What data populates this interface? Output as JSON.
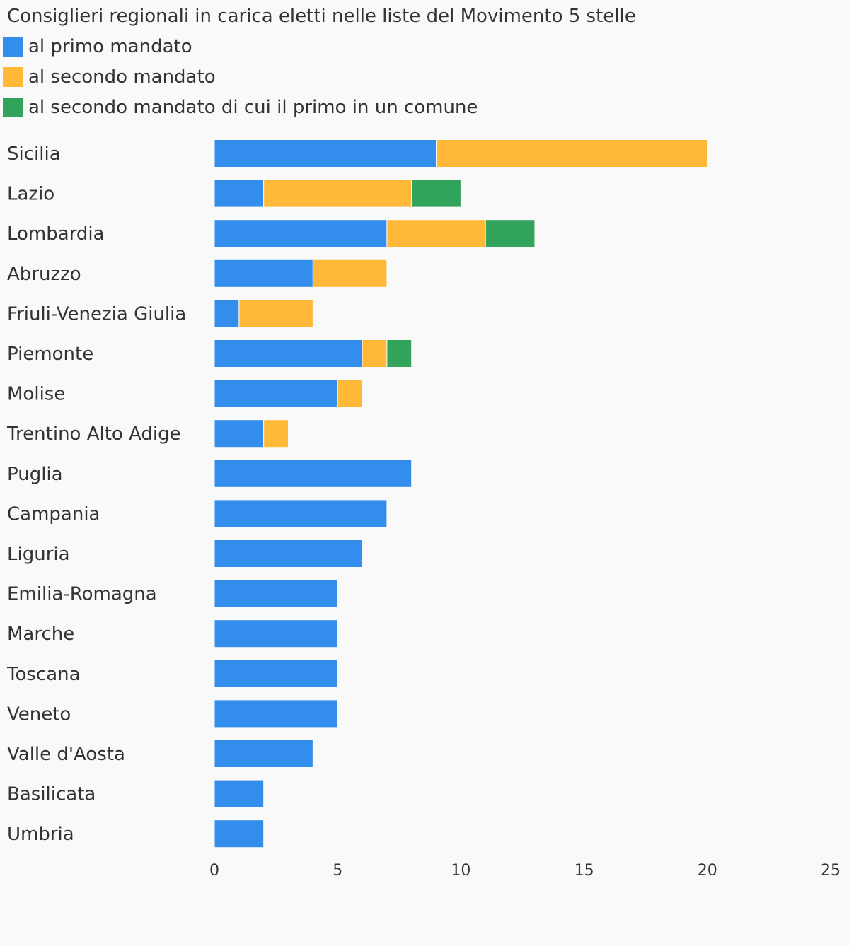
{
  "chart_data": {
    "type": "bar",
    "orientation": "horizontal",
    "stacked": true,
    "title": "Consiglieri regionali in carica eletti nelle liste del Movimento 5 stelle",
    "xlabel": "",
    "ylabel": "",
    "xlim": [
      0,
      25
    ],
    "xticks": [
      "0",
      "5",
      "10",
      "15",
      "20",
      "25"
    ],
    "grid": false,
    "legend_position": "top-left",
    "categories": [
      "Sicilia",
      "Lazio",
      "Lombardia",
      "Abruzzo",
      "Friuli-Venezia Giulia",
      "Piemonte",
      "Molise",
      "Trentino Alto Adige",
      "Puglia",
      "Campania",
      "Liguria",
      "Emilia-Romagna",
      "Marche",
      "Toscana",
      "Veneto",
      "Valle d'Aosta",
      "Basilicata",
      "Umbria"
    ],
    "series": [
      {
        "name": "al primo mandato",
        "color": "#338ded",
        "values": [
          9,
          2,
          7,
          4,
          1,
          6,
          5,
          2,
          8,
          7,
          6,
          5,
          5,
          5,
          5,
          4,
          2,
          2
        ]
      },
      {
        "name": "al secondo mandato",
        "color": "#ffb838",
        "values": [
          11,
          6,
          4,
          3,
          3,
          1,
          1,
          1,
          0,
          0,
          0,
          0,
          0,
          0,
          0,
          0,
          0,
          0
        ]
      },
      {
        "name": "al secondo mandato di cui il primo in un comune",
        "color": "#31a35a",
        "values": [
          0,
          2,
          2,
          0,
          0,
          1,
          0,
          0,
          0,
          0,
          0,
          0,
          0,
          0,
          0,
          0,
          0,
          0
        ]
      }
    ]
  }
}
